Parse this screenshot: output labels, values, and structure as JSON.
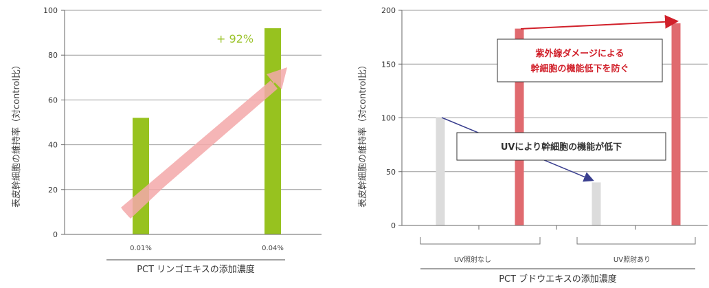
{
  "chart_data": [
    {
      "type": "bar",
      "categories": [
        "0.01%",
        "0.04%"
      ],
      "values": [
        52,
        92
      ],
      "ylim": [
        0,
        100
      ],
      "yticks": [
        0,
        20,
        40,
        60,
        80,
        100
      ],
      "grid": true,
      "ylabel": "表皮幹細胞の維持率（対control比）",
      "xlabel": "PCT リンゴエキスの添加濃度",
      "annotation": "+ 92%",
      "colors": {
        "bar": "#97c21f",
        "arrow": "#f4a9aa",
        "annotation": "#9bc32a"
      }
    },
    {
      "type": "bar",
      "series": [
        {
          "values": [
            100,
            183,
            40,
            188
          ]
        }
      ],
      "ylim": [
        0,
        200
      ],
      "yticks": [
        0,
        50,
        100,
        150,
        200
      ],
      "grid": true,
      "groups": [
        "UV照射なし",
        "UV照射あり"
      ],
      "ylabel": "表皮幹細胞の維持率（対control比）",
      "xlabel": "PCT ブドウエキスの添加濃度",
      "annotations": [
        "紫外線ダメージによる",
        "幹細胞の機能低下を防ぐ",
        "UVにより幹細胞の機能が低下"
      ],
      "colors": {
        "control": "#dcdcdc",
        "treated": "#e06a6f",
        "red_text": "#d1202a",
        "dark_arrow": "#3a3f8f"
      }
    }
  ]
}
